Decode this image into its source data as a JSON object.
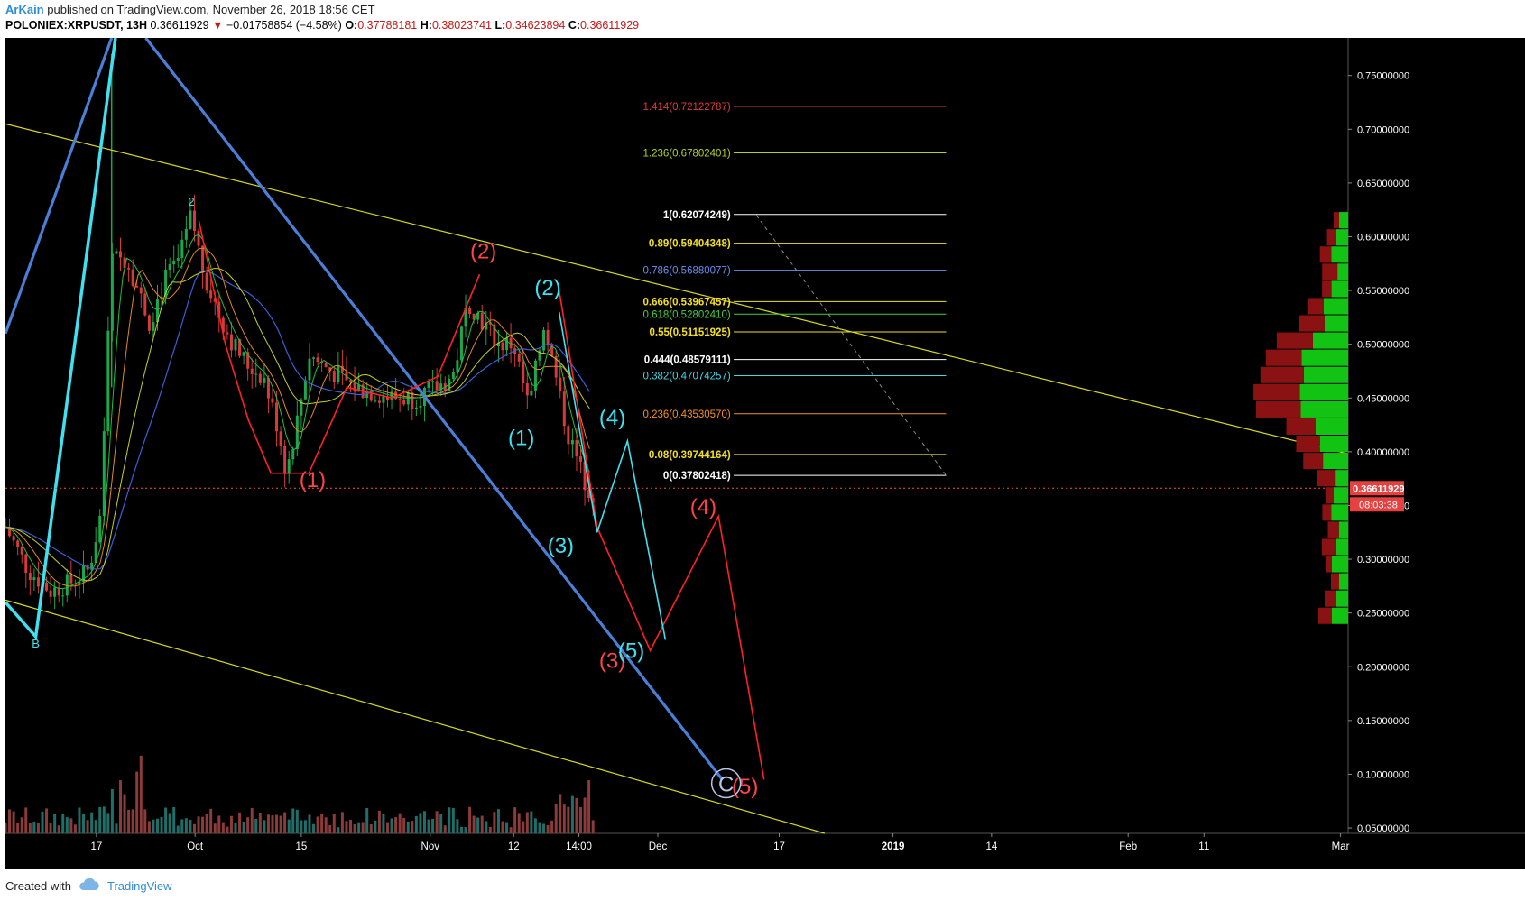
{
  "header": {
    "author": "ArKain",
    "published_text": "published on TradingView.com, November 26, 2018 18:56 CET",
    "symbol": "POLONIEX:XRPUSDT, 13H",
    "last": "0.36611929",
    "change_arrow": "▼",
    "change": "−0.01758854 (−4.58%)",
    "open_label": "O:",
    "open": "0.37788181",
    "high_label": "H:",
    "high": "0.38023741",
    "low_label": "L:",
    "low": "0.34623894",
    "close_label": "C:",
    "close": "0.36611929"
  },
  "footer": {
    "created_with": "Created with",
    "brand": "TradingView",
    "brand_icon": "tradingview-cloud-icon"
  },
  "colors": {
    "background": "#000000",
    "up_candle": "#1aa84b",
    "down_candle": "#d63a3a",
    "red_wave": "#ff2222",
    "cyan_wave": "#3fe0f0",
    "blue_line": "#4a7fd8",
    "yellow_line": "#d8d820",
    "price_line": "#ff4a4a"
  },
  "chart_data": {
    "type": "candlestick",
    "timeframe": "13H",
    "y_axis": {
      "scale": "linear",
      "range": [
        0.045,
        0.785
      ],
      "ticks": [
        "0.75000000",
        "0.70000000",
        "0.65000000",
        "0.60000000",
        "0.55000000",
        "0.50000000",
        "0.45000000",
        "0.40000000",
        "0.35000000",
        "0.30000000",
        "0.25000000",
        "0.20000000",
        "0.15000000",
        "0.10000000",
        "0.05000000"
      ],
      "tick_values": [
        0.75,
        0.7,
        0.65,
        0.6,
        0.55,
        0.5,
        0.45,
        0.4,
        0.35,
        0.3,
        0.25,
        0.2,
        0.15,
        0.1,
        0.05
      ]
    },
    "x_axis": {
      "range_days": [
        -25,
        152
      ],
      "ticks": [
        {
          "label": "17",
          "day": -13
        },
        {
          "label": "Oct",
          "day": 0
        },
        {
          "label": "15",
          "day": 14
        },
        {
          "label": "Nov",
          "day": 31
        },
        {
          "label": "12",
          "day": 42
        },
        {
          "label": "14:00",
          "day": 50.6
        },
        {
          "label": "Dec",
          "day": 61
        },
        {
          "label": "17",
          "day": 77
        },
        {
          "label": "2019",
          "day": 92
        },
        {
          "label": "14",
          "day": 105
        },
        {
          "label": "Feb",
          "day": 123
        },
        {
          "label": "11",
          "day": 133
        },
        {
          "label": "Mar",
          "day": 151
        },
        {
          "label": "11",
          "day": 161
        }
      ]
    },
    "current_price": {
      "value": 0.36611929,
      "label": "0.36611929",
      "countdown": "08:03:38"
    },
    "fibonacci": [
      {
        "label": "1.414(0.72122787)",
        "value": 0.72122787,
        "color": "#e03a3a"
      },
      {
        "label": "1.236(0.67802401)",
        "value": 0.67802401,
        "color": "#b8d020"
      },
      {
        "label": "1(0.62074249)",
        "value": 0.62074249,
        "color": "#ffffff"
      },
      {
        "label": "0.89(0.59404348)",
        "value": 0.59404348,
        "color": "#f4e01a"
      },
      {
        "label": "0.786(0.56880077)",
        "value": 0.56880077,
        "color": "#6a90f0"
      },
      {
        "label": "0.666(0.53967457)",
        "value": 0.53967457,
        "color": "#f4e01a"
      },
      {
        "label": "0.618(0.52802410)",
        "value": 0.5280241,
        "color": "#40d040"
      },
      {
        "label": "0.55(0.51151925)",
        "value": 0.51151925,
        "color": "#f4e01a"
      },
      {
        "label": "0.444(0.48579111)",
        "value": 0.48579111,
        "color": "#ffffff"
      },
      {
        "label": "0.382(0.47074257)",
        "value": 0.47074257,
        "color": "#40d8e8"
      },
      {
        "label": "0.236(0.43530570)",
        "value": 0.4353057,
        "color": "#f49020"
      },
      {
        "label": "0.08(0.39744164)",
        "value": 0.39744164,
        "color": "#f4e01a"
      },
      {
        "label": "0(0.37802418)",
        "value": 0.37802418,
        "color": "#ffffff"
      }
    ],
    "red_wave_projection": [
      [
        48,
        0.55
      ],
      [
        53,
        0.33
      ],
      [
        60,
        0.215
      ],
      [
        69,
        0.34
      ],
      [
        75,
        0.095
      ]
    ],
    "cyan_wave_projection": [
      [
        48,
        0.53
      ],
      [
        53,
        0.325
      ],
      [
        57,
        0.41
      ],
      [
        62,
        0.225
      ]
    ],
    "volume_profile_up": [
      0.623,
      0.607,
      0.591,
      0.575,
      0.559,
      0.543,
      0.527,
      0.511,
      0.495,
      0.479,
      0.463,
      0.447,
      0.431,
      0.415,
      0.399,
      0.383,
      0.367,
      0.351,
      0.335,
      0.319,
      0.303,
      0.287,
      0.271,
      0.255
    ],
    "wave_labels": [
      {
        "text": "(1)",
        "x": 15.5,
        "y": 0.367,
        "color": "#ff4444"
      },
      {
        "text": "(2)",
        "x": 38,
        "y": 0.58,
        "color": "#ff4444"
      },
      {
        "text": "(2)",
        "x": 46.5,
        "y": 0.546,
        "color": "#3fe0f0"
      },
      {
        "text": "(1)",
        "x": 43,
        "y": 0.406,
        "color": "#3fe0f0"
      },
      {
        "text": "(4)",
        "x": 55,
        "y": 0.425,
        "color": "#3fe0f0"
      },
      {
        "text": "(3)",
        "x": 48.2,
        "y": 0.306,
        "color": "#3fe0f0"
      },
      {
        "text": "(4)",
        "x": 67,
        "y": 0.342,
        "color": "#ff4444"
      },
      {
        "text": "(3)",
        "x": 55,
        "y": 0.199,
        "color": "#ff4444"
      },
      {
        "text": "(5)",
        "x": 57.5,
        "y": 0.208,
        "color": "#3fe0f0"
      },
      {
        "text": "(5)",
        "x": 72.5,
        "y": 0.082,
        "color": "#ff4444"
      },
      {
        "text": "C",
        "x": 70,
        "y": 0.084,
        "color": "#b8c4e8"
      },
      {
        "text": "B",
        "x": -21,
        "y": 0.218,
        "color": "#3fe0f0"
      },
      {
        "text": "2",
        "x": -0.5,
        "y": 0.629,
        "color": "#3fe0f0"
      }
    ]
  }
}
